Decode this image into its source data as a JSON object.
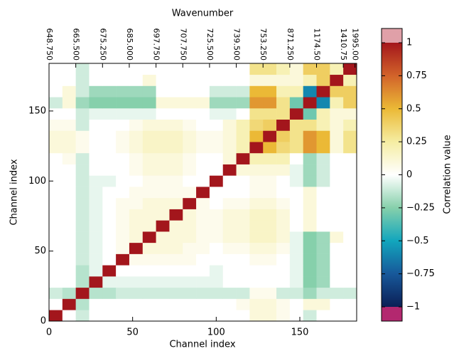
{
  "chart_data": {
    "type": "heatmap",
    "title": "Wavenumber",
    "xlabel": "Channel index",
    "ylabel": "Channel index",
    "colorbar_label": "Correlation value",
    "xlim": [
      0,
      184
    ],
    "ylim": [
      0,
      184
    ],
    "xticks": [
      0,
      50,
      100,
      150
    ],
    "yticks": [
      0,
      50,
      100,
      150
    ],
    "x2ticks": [
      {
        "value": 0,
        "label": "648.750"
      },
      {
        "value": 16,
        "label": "665.500"
      },
      {
        "value": 32,
        "label": "675.250"
      },
      {
        "value": 48,
        "label": "685.000"
      },
      {
        "value": 64,
        "label": "697.750"
      },
      {
        "value": 80,
        "label": "707.750"
      },
      {
        "value": 96,
        "label": "725.500"
      },
      {
        "value": 112,
        "label": "739.500"
      },
      {
        "value": 128,
        "label": "753.250"
      },
      {
        "value": 144,
        "label": "871.250"
      },
      {
        "value": 160,
        "label": "1174.50"
      },
      {
        "value": 176,
        "label": "1410.75"
      },
      {
        "value": 183,
        "label": "1995.00"
      }
    ],
    "zlim": [
      -1,
      1
    ],
    "zticks": [
      1,
      0.75,
      0.5,
      0.25,
      0,
      {
        "value": -0.25,
        "label": "−0.25"
      },
      {
        "value": -0.5,
        "label": "−0.5"
      },
      {
        "value": -0.75,
        "label": "−0.75"
      },
      {
        "value": -1,
        "label": "−1"
      }
    ],
    "colormap": [
      [
        -1,
        "#0b1f55"
      ],
      [
        -0.75,
        "#17589a"
      ],
      [
        -0.5,
        "#12a6bd"
      ],
      [
        -0.25,
        "#86d0ab"
      ],
      [
        0,
        "#ffffff"
      ],
      [
        0.25,
        "#f5eda2"
      ],
      [
        0.5,
        "#ebb936"
      ],
      [
        0.75,
        "#d2632a"
      ],
      [
        1,
        "#a3161c"
      ]
    ],
    "over_color": "#e0a0a8",
    "under_color": "#b3286f",
    "bins": [
      0,
      8,
      16,
      24,
      32,
      40,
      48,
      56,
      64,
      72,
      80,
      88,
      96,
      104,
      112,
      120,
      128,
      136,
      144,
      152,
      160,
      168,
      176,
      184
    ],
    "values": [
      [
        1,
        0,
        -0.1,
        0,
        0,
        0,
        0,
        0,
        0,
        0,
        0,
        0,
        0,
        0,
        0,
        0.1,
        0.1,
        0.05,
        0,
        -0.1,
        0,
        0,
        0
      ],
      [
        0,
        1,
        -0.15,
        0,
        0,
        0,
        0,
        0,
        0,
        0,
        0,
        0,
        0,
        0,
        0.05,
        0.1,
        0.1,
        0.05,
        0,
        0.1,
        0.1,
        0,
        0
      ],
      [
        -0.1,
        -0.15,
        1,
        -0.15,
        -0.15,
        -0.1,
        -0.1,
        -0.1,
        -0.1,
        -0.1,
        -0.1,
        -0.1,
        -0.1,
        -0.1,
        -0.1,
        0.05,
        0.05,
        -0.1,
        -0.1,
        -0.2,
        -0.1,
        -0.1,
        -0.1
      ],
      [
        0,
        0,
        -0.15,
        1,
        -0.05,
        -0.05,
        -0.05,
        -0.05,
        -0.05,
        -0.05,
        -0.05,
        -0.05,
        -0.05,
        0,
        0,
        0,
        0,
        0,
        -0.05,
        -0.25,
        -0.2,
        0,
        0
      ],
      [
        0,
        0,
        -0.15,
        -0.05,
        1,
        0,
        0,
        0,
        0,
        0,
        0,
        0,
        -0.05,
        0,
        0,
        0,
        0,
        0,
        -0.05,
        -0.25,
        -0.2,
        0,
        0
      ],
      [
        0,
        0,
        -0.1,
        -0.05,
        0,
        1,
        0.05,
        0.05,
        0.05,
        0.05,
        0.05,
        0,
        0,
        0,
        0,
        0.05,
        0.05,
        0,
        -0.05,
        -0.25,
        -0.2,
        0,
        0
      ],
      [
        0,
        0,
        -0.1,
        -0.05,
        0,
        0.05,
        1,
        0.1,
        0.1,
        0.1,
        0.05,
        0.05,
        0,
        0.05,
        0.05,
        0.1,
        0.1,
        0.05,
        -0.05,
        -0.25,
        -0.2,
        0,
        0
      ],
      [
        0,
        0,
        -0.1,
        -0.05,
        0,
        0.05,
        0.1,
        1,
        0.1,
        0.1,
        0.1,
        0.05,
        0.05,
        0.1,
        0.1,
        0.15,
        0.15,
        0.1,
        -0.05,
        -0.25,
        -0.2,
        0.1,
        0
      ],
      [
        0,
        0,
        -0.1,
        -0.05,
        0,
        0.05,
        0.1,
        0.1,
        1,
        0.1,
        0.1,
        0.05,
        0.05,
        0.1,
        0.1,
        0.15,
        0.15,
        0.1,
        0,
        0.1,
        0,
        0,
        0
      ],
      [
        0,
        0,
        -0.1,
        -0.05,
        0,
        0.05,
        0.1,
        0.1,
        0.1,
        1,
        0.1,
        0.05,
        0.05,
        0.1,
        0.1,
        0.15,
        0.15,
        0.1,
        0,
        0.1,
        0,
        0,
        0
      ],
      [
        0,
        0,
        -0.1,
        -0.05,
        0,
        0.05,
        0.05,
        0.1,
        0.1,
        0.1,
        1,
        0.05,
        0,
        0.05,
        0.05,
        0.1,
        0.1,
        0.05,
        0,
        0.1,
        0,
        0,
        0
      ],
      [
        0,
        0,
        -0.1,
        -0.05,
        0,
        0,
        0.05,
        0.05,
        0.05,
        0.05,
        0.05,
        1,
        0,
        0,
        0,
        0.05,
        0.05,
        0,
        0,
        0.1,
        0,
        0,
        0
      ],
      [
        0,
        0,
        -0.1,
        -0.05,
        -0.05,
        0,
        0,
        0.05,
        0.05,
        0.05,
        0,
        0,
        1,
        0,
        0,
        0.05,
        0.05,
        0,
        -0.05,
        -0.2,
        -0.1,
        0,
        0
      ],
      [
        0,
        0,
        -0.1,
        0,
        0,
        0,
        0.05,
        0.1,
        0.1,
        0.1,
        0.05,
        0,
        0,
        1,
        0.1,
        0.1,
        0.1,
        0.1,
        -0.05,
        -0.2,
        -0.1,
        0,
        0
      ],
      [
        0,
        0.05,
        -0.1,
        0,
        0,
        0,
        0.05,
        0.1,
        0.1,
        0.1,
        0.05,
        0,
        0,
        0.1,
        1,
        0.2,
        0.2,
        0.2,
        0,
        -0.2,
        -0.1,
        0,
        0
      ],
      [
        0.1,
        0.1,
        0.05,
        0,
        0,
        0.05,
        0.1,
        0.15,
        0.15,
        0.15,
        0.1,
        0.05,
        0.05,
        0.1,
        0.2,
        1,
        0.5,
        0.35,
        0.3,
        0.6,
        0.5,
        0.1,
        0.3
      ],
      [
        0.1,
        0.1,
        0.05,
        0,
        0,
        0.05,
        0.1,
        0.15,
        0.15,
        0.15,
        0.1,
        0.05,
        0.05,
        0.1,
        0.2,
        0.5,
        1,
        0.4,
        0.3,
        0.6,
        0.5,
        0.1,
        0.3
      ],
      [
        0.05,
        0.05,
        -0.1,
        0,
        0,
        0,
        0.05,
        0.1,
        0.1,
        0.1,
        0.05,
        0,
        0,
        0.1,
        0.2,
        0.35,
        0.4,
        1,
        0.3,
        0.3,
        0.2,
        0.1,
        0.2
      ],
      [
        0,
        0,
        -0.1,
        -0.05,
        -0.05,
        -0.05,
        -0.05,
        -0.05,
        0,
        0,
        0,
        0,
        -0.05,
        -0.05,
        0,
        0.3,
        0.3,
        0.3,
        1,
        -0.3,
        0.2,
        0.1,
        0.1
      ],
      [
        -0.1,
        0.1,
        -0.2,
        -0.25,
        -0.25,
        -0.25,
        -0.25,
        -0.25,
        0.1,
        0.1,
        0.1,
        0.1,
        -0.2,
        -0.2,
        -0.2,
        0.6,
        0.6,
        0.3,
        -0.3,
        1,
        -0.6,
        0.2,
        0.4
      ],
      [
        0,
        0.1,
        -0.1,
        -0.2,
        -0.2,
        -0.2,
        -0.2,
        -0.2,
        0,
        0,
        0,
        0,
        -0.1,
        -0.1,
        -0.1,
        0.5,
        0.5,
        0.2,
        0.2,
        -0.6,
        1,
        0.4,
        0.4
      ],
      [
        0,
        0,
        -0.1,
        0,
        0,
        0,
        0,
        0.1,
        0,
        0,
        0,
        0,
        0,
        0,
        0,
        0.1,
        0.1,
        0.1,
        0.1,
        0.2,
        0.4,
        1,
        0.2
      ],
      [
        0,
        0,
        -0.1,
        0,
        0,
        0,
        0,
        0,
        0,
        0,
        0,
        0,
        0,
        0,
        0,
        0.3,
        0.3,
        0.2,
        0.1,
        0.4,
        0.4,
        0.2,
        1
      ]
    ]
  }
}
